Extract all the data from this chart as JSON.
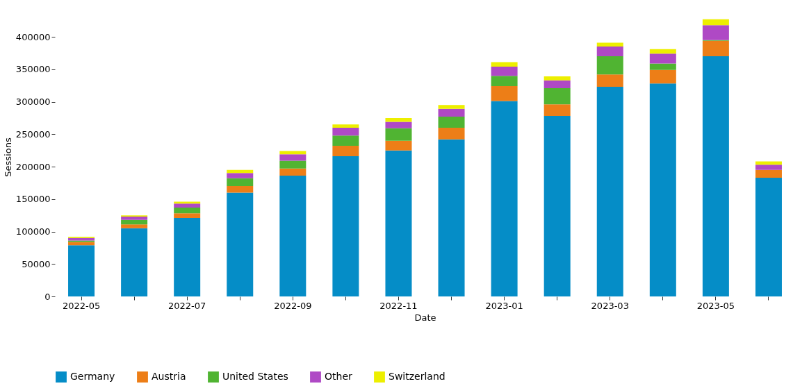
{
  "chart_data": {
    "type": "bar",
    "stacked": true,
    "xlabel": "Date",
    "ylabel": "Sessions",
    "categories": [
      "2022-05",
      null,
      "2022-07",
      null,
      "2022-09",
      null,
      "2022-11",
      null,
      "2023-01",
      null,
      "2023-03",
      null,
      "2023-05",
      null
    ],
    "series": [
      {
        "name": "Germany",
        "color": "#058dc7",
        "values": [
          79000,
          105000,
          121000,
          160000,
          186000,
          216000,
          225000,
          242000,
          301000,
          278000,
          323000,
          328000,
          370000,
          183000
        ]
      },
      {
        "name": "Austria",
        "color": "#ed7e17",
        "values": [
          5000,
          6000,
          7000,
          10000,
          11000,
          16000,
          15000,
          18000,
          23000,
          18000,
          19000,
          21000,
          24000,
          12000
        ]
      },
      {
        "name": "United States",
        "color": "#50b432",
        "values": [
          2000,
          7000,
          9000,
          12000,
          12000,
          16000,
          19000,
          17000,
          16000,
          25000,
          28000,
          10000,
          1000,
          0
        ]
      },
      {
        "name": "Other",
        "color": "#af49c5",
        "values": [
          4000,
          5000,
          6000,
          8000,
          10000,
          12000,
          10000,
          12000,
          14000,
          12000,
          15000,
          15000,
          23000,
          8000
        ]
      },
      {
        "name": "Switzerland",
        "color": "#edef00",
        "values": [
          2000,
          2000,
          3000,
          5000,
          5000,
          5000,
          6000,
          6000,
          7000,
          6000,
          6000,
          7000,
          9000,
          5000
        ]
      }
    ],
    "ylim": [
      0,
      430000
    ],
    "yticks": [
      0,
      50000,
      100000,
      150000,
      200000,
      250000,
      300000,
      350000,
      400000
    ],
    "grid": false,
    "legend": "bottom"
  }
}
